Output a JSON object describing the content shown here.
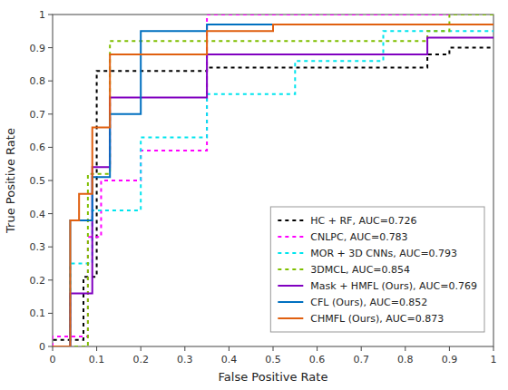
{
  "chart_data": {
    "type": "line",
    "xlabel": "False Positive Rate",
    "ylabel": "True Positive Rate",
    "xlim": [
      0,
      1
    ],
    "ylim": [
      0,
      1
    ],
    "xticks": [
      0,
      0.1,
      0.2,
      0.3,
      0.4,
      0.5,
      0.6,
      0.7,
      0.8,
      0.9,
      1
    ],
    "yticks": [
      0,
      0.1,
      0.2,
      0.3,
      0.4,
      0.5,
      0.6,
      0.7,
      0.8,
      0.9,
      1
    ],
    "grid": false,
    "legend": "lower right",
    "series": [
      {
        "name": "HC + RF, AUC=0.726",
        "color": "#000000",
        "line_style": "dotted",
        "x": [
          0.0,
          0.0,
          0.07,
          0.07,
          0.1,
          0.1,
          0.35,
          0.35,
          0.85,
          0.85,
          0.9,
          0.9,
          1.0
        ],
        "values": [
          0.0,
          0.02,
          0.02,
          0.21,
          0.21,
          0.83,
          0.83,
          0.84,
          0.84,
          0.88,
          0.88,
          0.9,
          0.9
        ]
      },
      {
        "name": "CNLPC, AUC=0.783",
        "color": "#ff00ff",
        "line_style": "dotted",
        "x": [
          0.0,
          0.0,
          0.08,
          0.08,
          0.11,
          0.11,
          0.2,
          0.2,
          0.35,
          0.35,
          0.5,
          0.5,
          1.0
        ],
        "values": [
          0.0,
          0.03,
          0.03,
          0.33,
          0.33,
          0.5,
          0.5,
          0.59,
          0.59,
          1.0,
          1.0,
          1.0,
          1.0
        ]
      },
      {
        "name": "MOR + 3D CNNs, AUC=0.793",
        "color": "#00e5ee",
        "line_style": "dotted",
        "x": [
          0.0,
          0.0,
          0.04,
          0.04,
          0.09,
          0.09,
          0.2,
          0.2,
          0.35,
          0.35,
          0.55,
          0.55,
          0.75,
          0.75,
          1.0
        ],
        "values": [
          0.0,
          0.0,
          0.0,
          0.25,
          0.25,
          0.41,
          0.41,
          0.63,
          0.63,
          0.76,
          0.76,
          0.86,
          0.86,
          0.95,
          0.95
        ]
      },
      {
        "name": "3DMCL, AUC=0.854",
        "color": "#7fbf00",
        "line_style": "dotted",
        "x": [
          0.0,
          0.0,
          0.08,
          0.08,
          0.13,
          0.13,
          0.85,
          0.85,
          0.9,
          0.9,
          1.0
        ],
        "values": [
          0.0,
          0.0,
          0.0,
          0.52,
          0.52,
          0.92,
          0.92,
          0.95,
          0.95,
          1.0,
          1.0
        ]
      },
      {
        "name": "Mask + HMFL (Ours), AUC=0.769",
        "color": "#8000c0",
        "line_style": "solid",
        "x": [
          0.0,
          0.0,
          0.04,
          0.04,
          0.09,
          0.09,
          0.13,
          0.13,
          0.35,
          0.35,
          0.85,
          0.85,
          1.0
        ],
        "values": [
          0.0,
          0.0,
          0.0,
          0.16,
          0.16,
          0.54,
          0.54,
          0.75,
          0.75,
          0.88,
          0.88,
          0.93,
          0.93
        ]
      },
      {
        "name": "CFL (Ours), AUC=0.852",
        "color": "#0070c0",
        "line_style": "solid",
        "x": [
          0.0,
          0.0,
          0.04,
          0.04,
          0.09,
          0.09,
          0.13,
          0.13,
          0.2,
          0.2,
          0.35,
          0.35,
          1.0
        ],
        "values": [
          0.0,
          0.0,
          0.0,
          0.38,
          0.38,
          0.51,
          0.51,
          0.7,
          0.7,
          0.95,
          0.95,
          0.97,
          0.97
        ]
      },
      {
        "name": "CHMFL (Ours), AUC=0.873",
        "color": "#e06010",
        "line_style": "solid",
        "x": [
          0.0,
          0.0,
          0.04,
          0.04,
          0.06,
          0.06,
          0.09,
          0.09,
          0.13,
          0.13,
          0.35,
          0.35,
          0.5,
          0.5,
          1.0
        ],
        "values": [
          0.0,
          0.0,
          0.0,
          0.38,
          0.38,
          0.46,
          0.46,
          0.66,
          0.66,
          0.88,
          0.88,
          0.95,
          0.95,
          0.97,
          0.97
        ]
      }
    ]
  }
}
